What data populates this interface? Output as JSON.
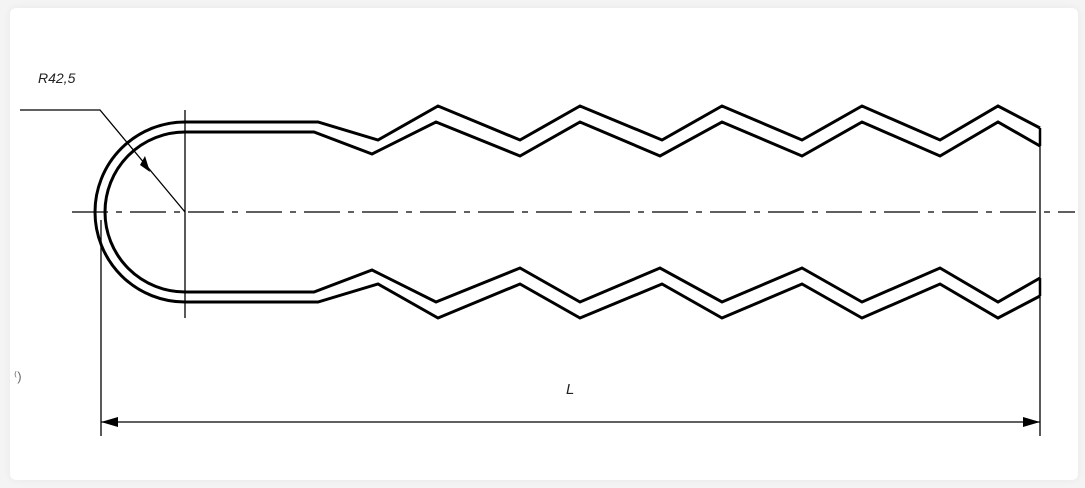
{
  "drawing": {
    "radius_label": "R42,5",
    "length_label": "L",
    "corner_mark": "⁽)",
    "line_color": "#000000"
  }
}
